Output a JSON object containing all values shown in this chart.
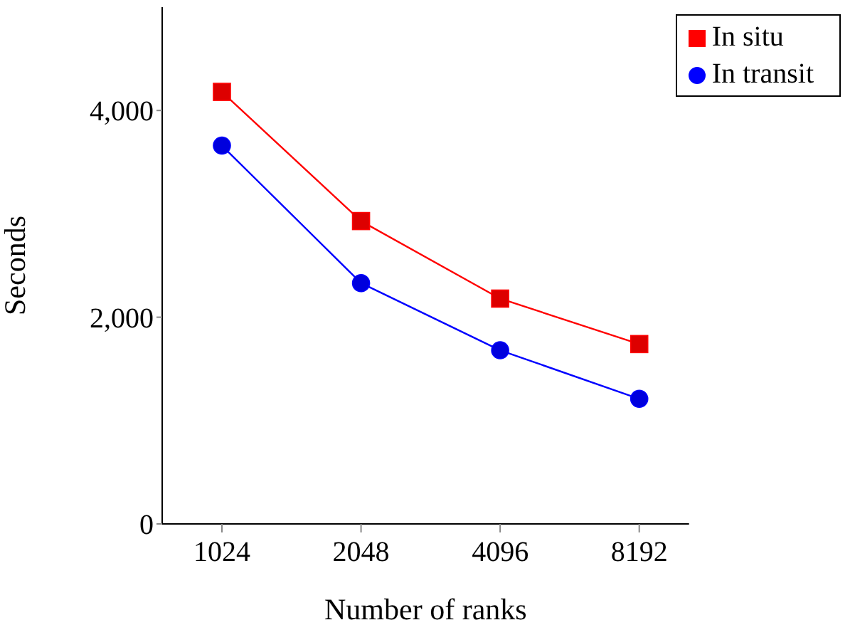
{
  "chart_data": {
    "type": "line",
    "xlabel": "Number of ranks",
    "ylabel": "Seconds",
    "categories": [
      "1024",
      "2048",
      "4096",
      "8192"
    ],
    "series": [
      {
        "name": "In situ",
        "color": "#ff0000",
        "marker": "square",
        "values": [
          4180,
          2930,
          2180,
          1740
        ]
      },
      {
        "name": "In transit",
        "color": "#0000ff",
        "marker": "circle",
        "values": [
          3660,
          2330,
          1680,
          1210
        ]
      }
    ],
    "ylim": [
      0,
      5000
    ],
    "yticks": [
      0,
      {
        "value": 2000,
        "label": "2,000"
      },
      {
        "value": 4000,
        "label": "4,000"
      }
    ],
    "legend": "top right",
    "grid": false
  }
}
